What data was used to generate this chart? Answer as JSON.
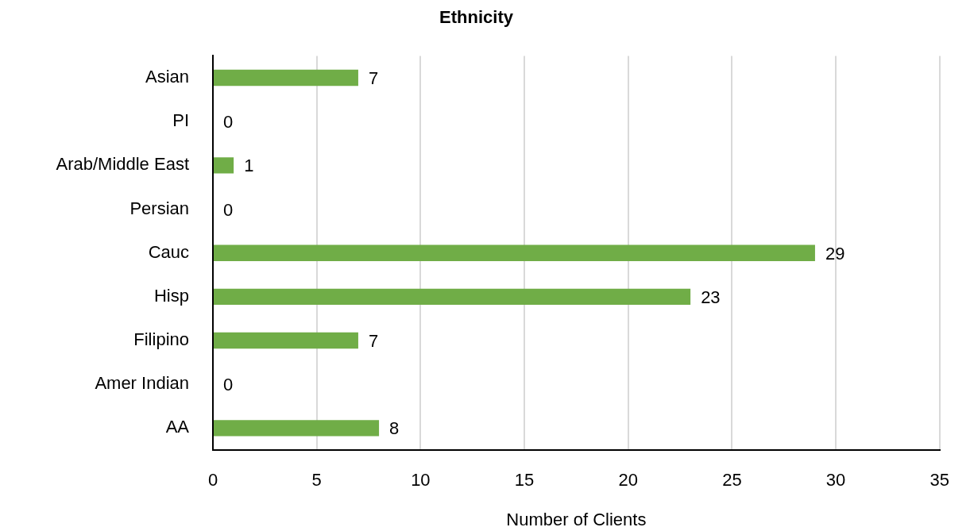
{
  "chart_data": {
    "type": "bar",
    "orientation": "horizontal",
    "title": "Ethnicity",
    "xlabel": "Number of Clients",
    "categories": [
      "Asian",
      "PI",
      "Arab/Middle East",
      "Persian",
      "Cauc",
      "Hisp",
      "Filipino",
      "Amer Indian",
      "AA"
    ],
    "values": [
      7,
      0,
      1,
      0,
      29,
      23,
      7,
      0,
      8
    ],
    "color": "#70ad47",
    "xlim": [
      0,
      35
    ],
    "xticks": [
      0,
      5,
      10,
      15,
      20,
      25,
      30,
      35
    ],
    "grid": "x",
    "data_labels": true
  }
}
